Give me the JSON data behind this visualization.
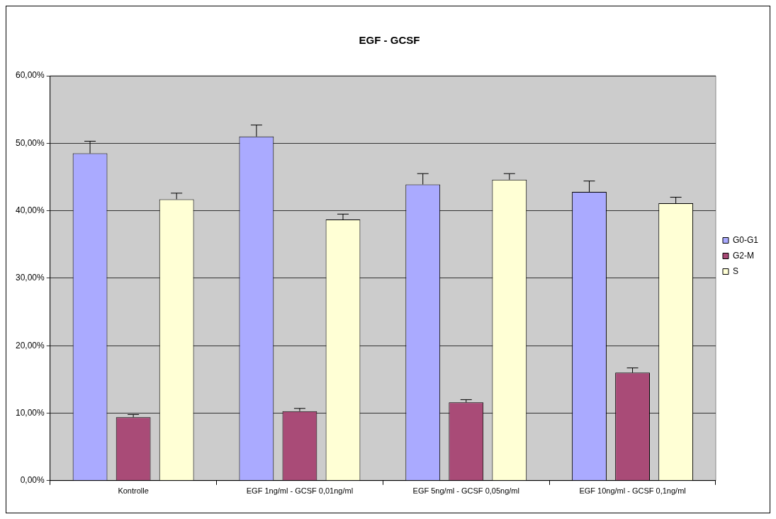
{
  "chart_data": {
    "type": "bar",
    "title": "EGF - GCSF",
    "categories": [
      "Kontrolle",
      "EGF 1ng/ml - GCSF 0,01ng/ml",
      "EGF 5ng/ml - GCSF 0,05ng/ml",
      "EGF 10ng/ml - GCSF 0,1ng/ml"
    ],
    "series": [
      {
        "name": "G0-G1",
        "color": "#aaaaff",
        "values": [
          48.5,
          51.0,
          43.9,
          42.8
        ],
        "errors": [
          [
            48.5,
            50.3
          ],
          [
            51.0,
            52.7
          ],
          [
            43.9,
            45.5
          ],
          [
            42.8,
            44.4
          ]
        ]
      },
      {
        "name": "G2-M",
        "color": "#a94b77",
        "values": [
          9.4,
          10.3,
          11.6,
          16.0
        ],
        "errors": [
          [
            9.4,
            9.8
          ],
          [
            10.3,
            10.7
          ],
          [
            11.6,
            12.0
          ],
          [
            16.0,
            16.7
          ]
        ]
      },
      {
        "name": "S",
        "color": "#ffffd5",
        "values": [
          41.7,
          38.7,
          44.6,
          41.1
        ],
        "errors": [
          [
            41.7,
            42.6
          ],
          [
            38.7,
            39.5
          ],
          [
            44.6,
            45.5
          ],
          [
            41.1,
            42.0
          ]
        ]
      }
    ],
    "ylim": [
      0,
      60
    ],
    "yticks": [
      {
        "value": 0,
        "label": "0,00%"
      },
      {
        "value": 10,
        "label": "10,00%"
      },
      {
        "value": 20,
        "label": "20,00%"
      },
      {
        "value": 30,
        "label": "30,00%"
      },
      {
        "value": 40,
        "label": "40,00%"
      },
      {
        "value": 50,
        "label": "50,00%"
      },
      {
        "value": 60,
        "label": "60,00%"
      }
    ],
    "grid": "y",
    "legend": "right"
  }
}
